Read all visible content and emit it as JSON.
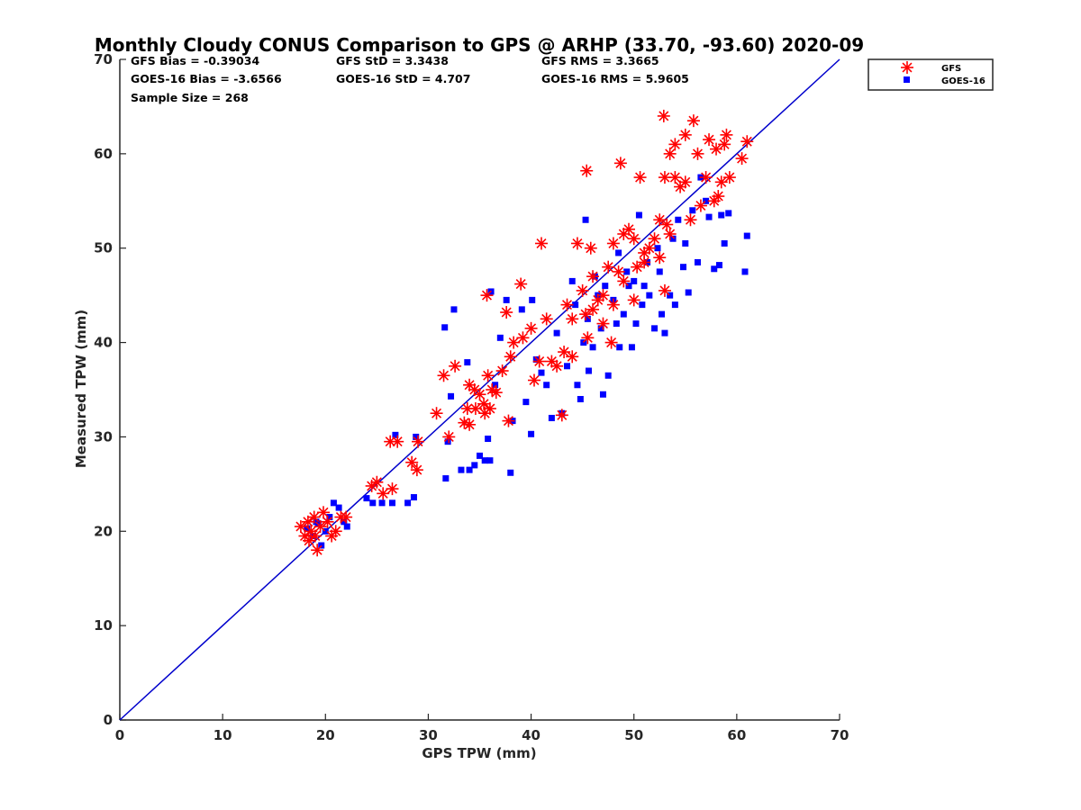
{
  "colors": {
    "gfs": "#ff0000",
    "goes": "#0000ff",
    "line": "#0000cc",
    "axis": "#262626"
  },
  "chart_data": {
    "type": "scatter",
    "title": "Monthly Cloudy CONUS Comparison to GPS @ ARHP (33.70, -93.60) 2020-09",
    "xlabel": "GPS TPW (mm)",
    "ylabel": "Measured TPW (mm)",
    "xlim": [
      0,
      70
    ],
    "ylim": [
      0,
      70
    ],
    "xticks": [
      "0",
      "10",
      "20",
      "30",
      "40",
      "50",
      "60",
      "70"
    ],
    "yticks": [
      "0",
      "10",
      "20",
      "30",
      "40",
      "50",
      "60",
      "70"
    ],
    "grid": false,
    "legend_position": "outside top-right",
    "reference_line": {
      "name": "1:1",
      "from": [
        0,
        0
      ],
      "to": [
        70,
        70
      ]
    },
    "stats": [
      {
        "id": "gfs-bias",
        "text": "GFS Bias = -0.39034"
      },
      {
        "id": "gfs-std",
        "text": "GFS StD = 3.3438"
      },
      {
        "id": "gfs-rms",
        "text": "GFS RMS = 3.3665"
      },
      {
        "id": "goes-bias",
        "text": "GOES-16 Bias = -3.6566"
      },
      {
        "id": "goes-std",
        "text": "GOES-16 StD = 4.707"
      },
      {
        "id": "goes-rms",
        "text": "GOES-16 RMS = 5.9605"
      },
      {
        "id": "sample-size",
        "text": "Sample Size = 268"
      }
    ],
    "series": [
      {
        "name": "GFS",
        "marker": "asterisk",
        "points": [
          [
            17.6,
            20.5
          ],
          [
            18.0,
            19.5
          ],
          [
            18.3,
            21.0
          ],
          [
            18.6,
            20.0
          ],
          [
            18.9,
            21.5
          ],
          [
            19.2,
            18.0
          ],
          [
            19.5,
            20.5
          ],
          [
            19.8,
            22.0
          ],
          [
            20.2,
            21.0
          ],
          [
            20.6,
            19.5
          ],
          [
            21.0,
            20.0
          ],
          [
            21.5,
            21.5
          ],
          [
            22.0,
            21.5
          ],
          [
            18.4,
            19.0
          ],
          [
            19.0,
            19.5
          ],
          [
            24.5,
            24.8
          ],
          [
            25.0,
            25.2
          ],
          [
            25.6,
            24.0
          ],
          [
            26.5,
            24.5
          ],
          [
            27.0,
            29.5
          ],
          [
            26.3,
            29.5
          ],
          [
            28.4,
            27.3
          ],
          [
            28.9,
            26.5
          ],
          [
            29.0,
            29.5
          ],
          [
            30.8,
            32.5
          ],
          [
            31.5,
            36.5
          ],
          [
            32.0,
            30.0
          ],
          [
            32.6,
            37.5
          ],
          [
            33.5,
            31.5
          ],
          [
            34.0,
            35.5
          ],
          [
            34.6,
            33.0
          ],
          [
            35.0,
            34.5
          ],
          [
            35.4,
            33.5
          ],
          [
            35.8,
            36.5
          ],
          [
            36.2,
            35.0
          ],
          [
            36.6,
            34.7
          ],
          [
            37.2,
            37.0
          ],
          [
            37.8,
            31.7
          ],
          [
            38.0,
            38.5
          ],
          [
            38.3,
            40.0
          ],
          [
            39.2,
            40.5
          ],
          [
            39.0,
            46.2
          ],
          [
            40.0,
            41.5
          ],
          [
            40.3,
            36.0
          ],
          [
            40.8,
            38.0
          ],
          [
            41.0,
            50.5
          ],
          [
            35.7,
            45.0
          ],
          [
            37.6,
            43.2
          ],
          [
            34.5,
            35.0
          ],
          [
            35.5,
            32.5
          ],
          [
            36.0,
            33.0
          ],
          [
            34.0,
            31.3
          ],
          [
            33.8,
            33.0
          ],
          [
            41.5,
            42.5
          ],
          [
            42.0,
            38.0
          ],
          [
            42.5,
            37.5
          ],
          [
            43.0,
            32.3
          ],
          [
            43.2,
            39.0
          ],
          [
            43.5,
            44.0
          ],
          [
            44.0,
            38.5
          ],
          [
            44.5,
            50.5
          ],
          [
            45.0,
            45.5
          ],
          [
            45.3,
            43.0
          ],
          [
            45.8,
            50.0
          ],
          [
            45.4,
            58.2
          ],
          [
            46.0,
            47.0
          ],
          [
            46.5,
            44.5
          ],
          [
            47.0,
            42.0
          ],
          [
            47.5,
            48.0
          ],
          [
            47.8,
            40.0
          ],
          [
            48.0,
            50.5
          ],
          [
            48.5,
            47.5
          ],
          [
            48.7,
            59.0
          ],
          [
            49.0,
            51.5
          ],
          [
            49.5,
            52.0
          ],
          [
            50.0,
            51.0
          ],
          [
            50.3,
            48.0
          ],
          [
            50.6,
            57.5
          ],
          [
            51.0,
            49.5
          ],
          [
            51.5,
            50.0
          ],
          [
            52.0,
            51.0
          ],
          [
            52.5,
            53.0
          ],
          [
            52.9,
            64.0
          ],
          [
            53.2,
            52.5
          ],
          [
            53.0,
            57.5
          ],
          [
            53.5,
            60.0
          ],
          [
            54.0,
            61.0
          ],
          [
            54.0,
            57.5
          ],
          [
            54.5,
            56.5
          ],
          [
            55.0,
            62.0
          ],
          [
            55.0,
            57.0
          ],
          [
            55.8,
            63.5
          ],
          [
            56.2,
            60.0
          ],
          [
            56.5,
            54.5
          ],
          [
            57.0,
            57.5
          ],
          [
            57.3,
            61.5
          ],
          [
            57.8,
            55.0
          ],
          [
            58.0,
            60.5
          ],
          [
            58.2,
            55.5
          ],
          [
            58.5,
            57.0
          ],
          [
            58.8,
            61.0
          ],
          [
            59.0,
            62.0
          ],
          [
            59.3,
            57.5
          ],
          [
            60.5,
            59.5
          ],
          [
            61.0,
            61.3
          ],
          [
            50.0,
            44.5
          ],
          [
            49.0,
            46.5
          ],
          [
            52.5,
            49.0
          ],
          [
            53.0,
            45.5
          ],
          [
            47.0,
            45.0
          ],
          [
            46.0,
            43.5
          ],
          [
            44.0,
            42.5
          ],
          [
            45.5,
            40.5
          ],
          [
            48.0,
            44.0
          ],
          [
            51.0,
            48.5
          ],
          [
            53.5,
            51.5
          ],
          [
            55.5,
            53.0
          ]
        ]
      },
      {
        "name": "GOES-16",
        "marker": "square",
        "points": [
          [
            18.2,
            20.3
          ],
          [
            18.8,
            19.5
          ],
          [
            19.1,
            21.0
          ],
          [
            19.6,
            18.5
          ],
          [
            20.0,
            20.0
          ],
          [
            20.4,
            21.5
          ],
          [
            20.8,
            23.0
          ],
          [
            21.3,
            22.5
          ],
          [
            21.8,
            21.0
          ],
          [
            22.1,
            20.5
          ],
          [
            19.3,
            20.8
          ],
          [
            24.0,
            23.5
          ],
          [
            24.6,
            23.0
          ],
          [
            25.5,
            23.0
          ],
          [
            26.5,
            23.0
          ],
          [
            26.8,
            30.2
          ],
          [
            28.0,
            23.0
          ],
          [
            28.6,
            23.6
          ],
          [
            28.8,
            30.0
          ],
          [
            31.6,
            41.6
          ],
          [
            31.7,
            25.6
          ],
          [
            31.9,
            29.5
          ],
          [
            32.2,
            34.3
          ],
          [
            32.5,
            43.5
          ],
          [
            33.2,
            26.5
          ],
          [
            33.8,
            37.9
          ],
          [
            34.0,
            26.5
          ],
          [
            34.5,
            27.0
          ],
          [
            35.0,
            28.0
          ],
          [
            35.5,
            27.5
          ],
          [
            35.8,
            29.8
          ],
          [
            36.0,
            27.5
          ],
          [
            36.1,
            45.4
          ],
          [
            36.5,
            35.5
          ],
          [
            37.0,
            40.5
          ],
          [
            37.6,
            44.5
          ],
          [
            38.0,
            26.2
          ],
          [
            38.2,
            31.7
          ],
          [
            39.1,
            43.5
          ],
          [
            39.5,
            33.7
          ],
          [
            40.0,
            30.3
          ],
          [
            40.5,
            38.2
          ],
          [
            41.0,
            36.8
          ],
          [
            40.1,
            44.5
          ],
          [
            41.5,
            35.5
          ],
          [
            42.0,
            32.0
          ],
          [
            42.5,
            41.0
          ],
          [
            43.0,
            32.5
          ],
          [
            43.5,
            37.5
          ],
          [
            44.0,
            46.5
          ],
          [
            44.5,
            35.5
          ],
          [
            44.8,
            34.0
          ],
          [
            45.1,
            40.0
          ],
          [
            45.3,
            53.0
          ],
          [
            45.6,
            37.0
          ],
          [
            46.0,
            39.5
          ],
          [
            46.5,
            45.0
          ],
          [
            46.8,
            41.5
          ],
          [
            47.0,
            34.5
          ],
          [
            47.5,
            36.5
          ],
          [
            48.0,
            44.5
          ],
          [
            48.3,
            42.0
          ],
          [
            48.6,
            39.5
          ],
          [
            49.0,
            43.0
          ],
          [
            49.5,
            46.0
          ],
          [
            49.8,
            39.5
          ],
          [
            50.2,
            42.0
          ],
          [
            50.5,
            53.5
          ],
          [
            50.8,
            44.0
          ],
          [
            51.0,
            46.0
          ],
          [
            51.5,
            45.0
          ],
          [
            52.0,
            41.5
          ],
          [
            52.5,
            47.5
          ],
          [
            52.7,
            43.0
          ],
          [
            53.0,
            41.0
          ],
          [
            53.5,
            45.0
          ],
          [
            54.0,
            44.0
          ],
          [
            54.3,
            53.0
          ],
          [
            54.8,
            48.0
          ],
          [
            55.3,
            45.3
          ],
          [
            55.7,
            54.0
          ],
          [
            56.2,
            48.5
          ],
          [
            56.5,
            57.5
          ],
          [
            57.0,
            55.0
          ],
          [
            57.3,
            53.3
          ],
          [
            57.8,
            47.8
          ],
          [
            58.3,
            48.2
          ],
          [
            58.5,
            53.5
          ],
          [
            58.8,
            50.5
          ],
          [
            59.2,
            53.7
          ],
          [
            60.8,
            47.5
          ],
          [
            61.0,
            51.3
          ],
          [
            48.5,
            49.5
          ],
          [
            49.3,
            47.5
          ],
          [
            50.0,
            46.5
          ],
          [
            51.3,
            48.5
          ],
          [
            52.3,
            50.0
          ],
          [
            53.8,
            51.0
          ],
          [
            55.0,
            50.5
          ],
          [
            46.2,
            47.0
          ],
          [
            47.2,
            46.0
          ],
          [
            45.5,
            42.5
          ],
          [
            44.3,
            44.0
          ]
        ]
      }
    ]
  }
}
